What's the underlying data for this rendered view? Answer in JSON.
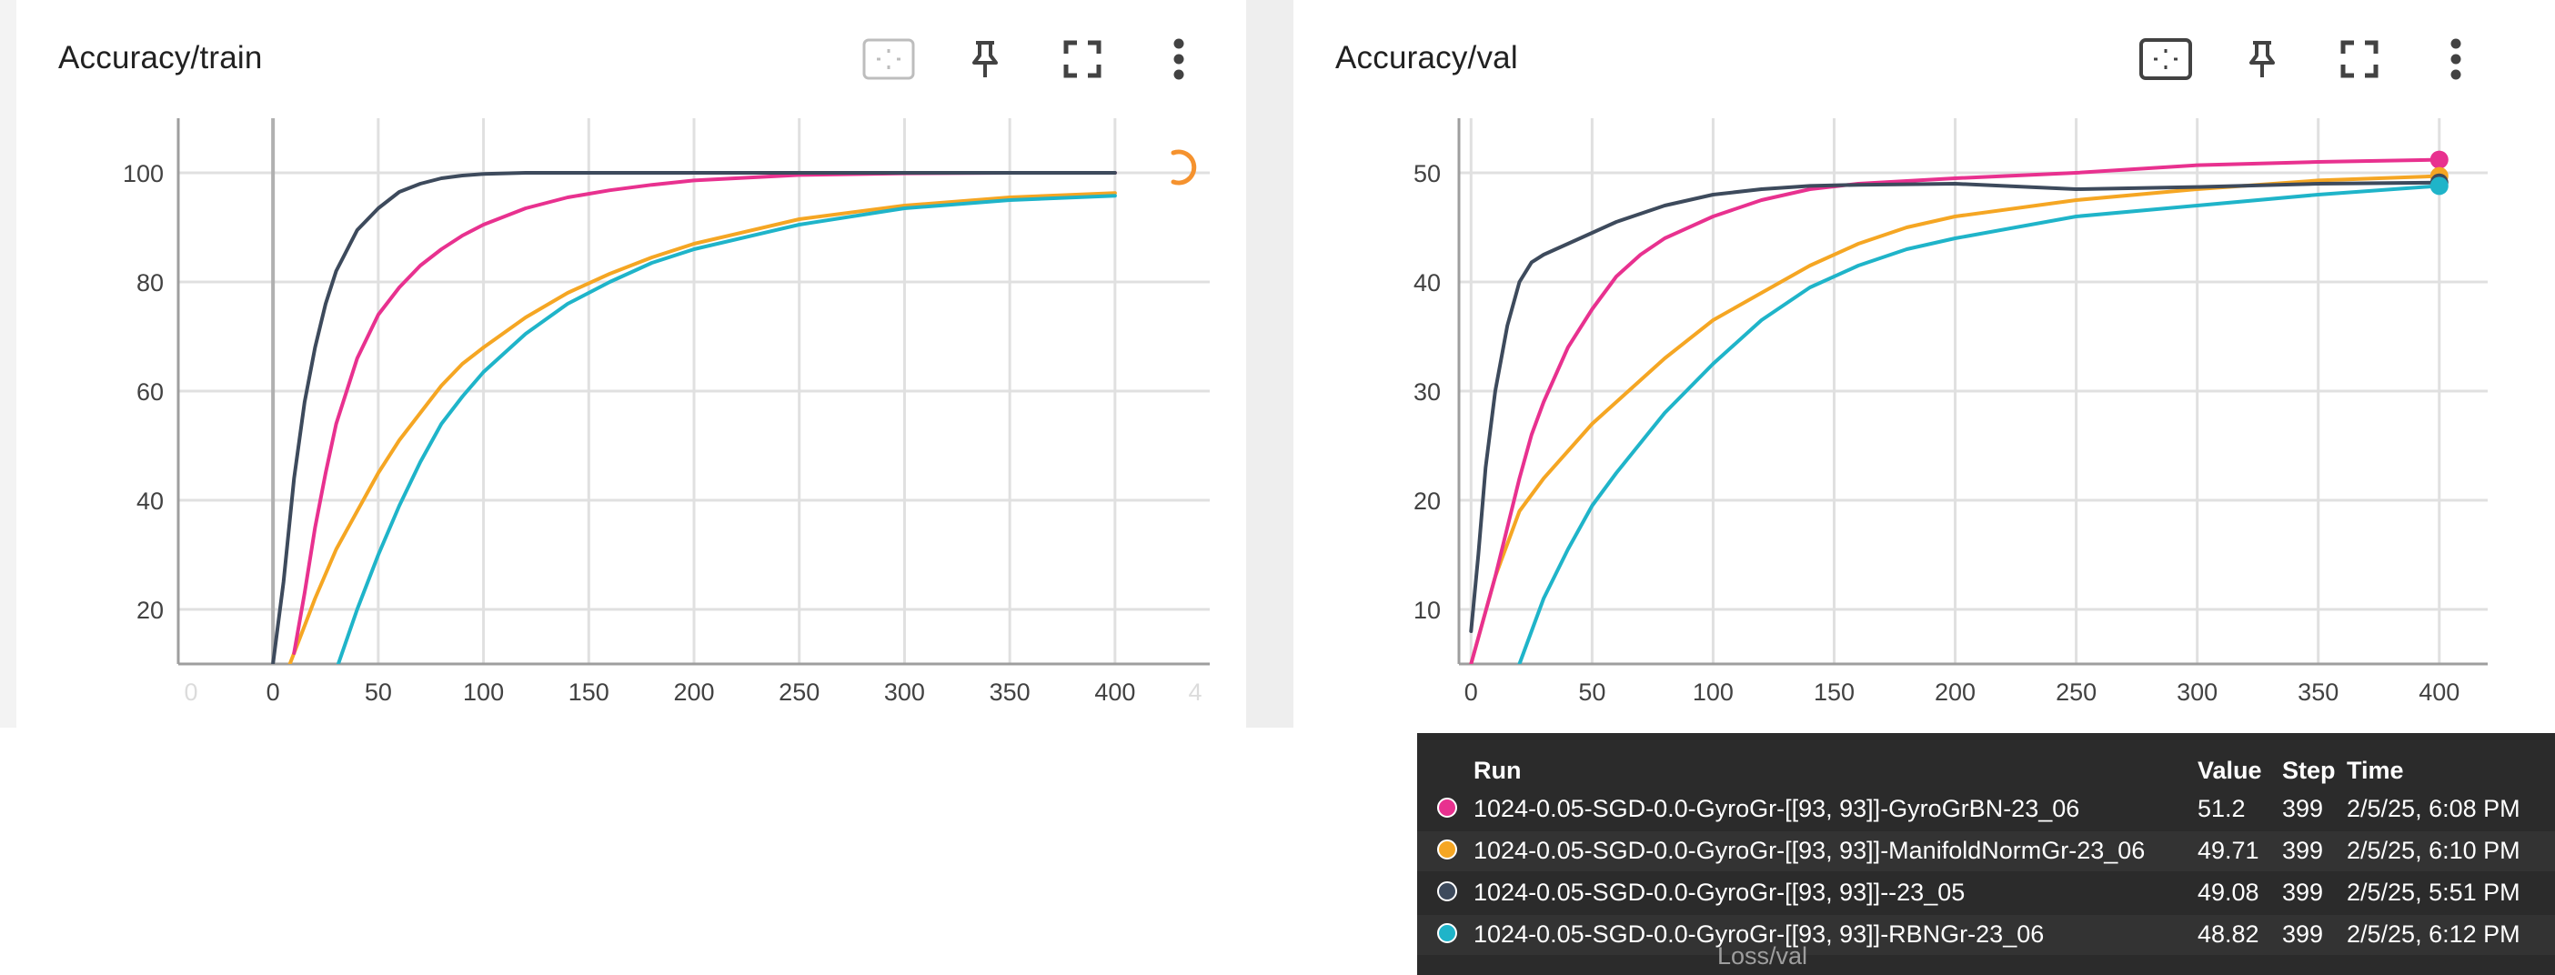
{
  "charts": [
    {
      "card_title": "Accuracy/train",
      "toolbar_icons": [
        "fit-domain-icon",
        "pin-icon",
        "fullscreen-icon",
        "more-vert-icon"
      ],
      "loading_indicator": true
    },
    {
      "card_title": "Accuracy/val",
      "toolbar_icons": [
        "fit-domain-icon",
        "pin-icon",
        "fullscreen-icon",
        "more-vert-icon"
      ],
      "loading_indicator": false
    }
  ],
  "colors": {
    "gyrogrbn": "#e8318f",
    "manifoldnorm": "#f5a623",
    "baseline": "#3d4a5c",
    "rbngr": "#1fb4c9",
    "grid": "#e0e0e0",
    "axis": "#9e9e9e",
    "spinner": "#f5922e"
  },
  "chart_data": [
    {
      "type": "line",
      "title": "Accuracy/train",
      "xlabel": "",
      "ylabel": "",
      "xlim": [
        -45,
        445
      ],
      "ylim": [
        10,
        110
      ],
      "x_ticks": [
        "0",
        "50",
        "100",
        "150",
        "200",
        "250",
        "300",
        "350",
        "400"
      ],
      "x_tick_values": [
        0,
        50,
        100,
        150,
        200,
        250,
        300,
        350,
        400
      ],
      "x_edge_labels": [
        "0",
        "4"
      ],
      "y_ticks": [
        20,
        40,
        60,
        80,
        100
      ],
      "grid": true,
      "series": [
        {
          "name": "1024-0.05-SGD-0.0-GyroGr-[[93, 93]]-GyroGrBN-23_06",
          "color_key": "gyrogrbn",
          "x": [
            10,
            15,
            20,
            25,
            30,
            40,
            50,
            60,
            70,
            80,
            90,
            100,
            120,
            140,
            160,
            180,
            200,
            250,
            300,
            350,
            400
          ],
          "y": [
            12,
            23,
            35,
            45,
            54,
            66,
            74,
            79,
            83,
            86,
            88.5,
            90.5,
            93.5,
            95.5,
            96.8,
            97.8,
            98.6,
            99.6,
            99.9,
            100,
            100
          ]
        },
        {
          "name": "1024-0.05-SGD-0.0-GyroGr-[[93, 93]]-ManifoldNormGr-23_06",
          "color_key": "manifoldnorm",
          "x": [
            8,
            15,
            20,
            30,
            40,
            50,
            60,
            70,
            80,
            90,
            100,
            120,
            140,
            160,
            180,
            200,
            250,
            300,
            350,
            400
          ],
          "y": [
            10,
            17,
            22,
            31,
            38,
            45,
            51,
            56,
            61,
            65,
            68,
            73.5,
            78,
            81.5,
            84.5,
            87,
            91.5,
            94,
            95.5,
            96.3
          ]
        },
        {
          "name": "1024-0.05-SGD-0.0-GyroGr-[[93, 93]]--23_05",
          "color_key": "baseline",
          "x": [
            0,
            5,
            10,
            15,
            20,
            25,
            30,
            40,
            50,
            60,
            70,
            80,
            90,
            100,
            120,
            150,
            200,
            300,
            400
          ],
          "y": [
            10,
            25,
            44,
            58,
            68,
            76,
            82,
            89.5,
            93.5,
            96.5,
            98,
            99,
            99.5,
            99.8,
            100,
            100,
            100,
            100,
            100
          ]
        },
        {
          "name": "1024-0.05-SGD-0.0-GyroGr-[[93, 93]]-RBNGr-23_06",
          "color_key": "rbngr",
          "x": [
            31,
            40,
            50,
            60,
            70,
            80,
            90,
            100,
            120,
            140,
            160,
            180,
            200,
            250,
            300,
            350,
            400
          ],
          "y": [
            10,
            20,
            30,
            39,
            47,
            54,
            59,
            63.5,
            70.5,
            76,
            80,
            83.5,
            86,
            90.5,
            93.5,
            95,
            95.8
          ]
        }
      ]
    },
    {
      "type": "line",
      "title": "Accuracy/val",
      "xlabel": "",
      "ylabel": "",
      "xlim": [
        -5,
        420
      ],
      "ylim": [
        5,
        55
      ],
      "x_ticks": [
        "0",
        "50",
        "100",
        "150",
        "200",
        "250",
        "300",
        "350",
        "400"
      ],
      "x_tick_values": [
        0,
        50,
        100,
        150,
        200,
        250,
        300,
        350,
        400
      ],
      "y_ticks": [
        10,
        20,
        30,
        40,
        50
      ],
      "grid": true,
      "series": [
        {
          "name": "1024-0.05-SGD-0.0-GyroGr-[[93, 93]]-GyroGrBN-23_06",
          "color_key": "gyrogrbn",
          "x": [
            0,
            5,
            10,
            15,
            20,
            25,
            30,
            40,
            50,
            60,
            70,
            80,
            100,
            120,
            140,
            160,
            200,
            250,
            300,
            350,
            400
          ],
          "y": [
            5,
            9,
            13,
            17.5,
            22,
            26,
            29,
            34,
            37.5,
            40.5,
            42.5,
            44,
            46,
            47.5,
            48.5,
            49,
            49.5,
            50,
            50.7,
            51,
            51.2
          ]
        },
        {
          "name": "1024-0.05-SGD-0.0-GyroGr-[[93, 93]]-ManifoldNormGr-23_06",
          "color_key": "manifoldnorm",
          "x": [
            0,
            5,
            10,
            15,
            20,
            30,
            40,
            50,
            60,
            80,
            100,
            120,
            140,
            160,
            180,
            200,
            250,
            300,
            350,
            400
          ],
          "y": [
            5,
            9,
            13,
            16,
            19,
            22,
            24.5,
            27,
            29,
            33,
            36.5,
            39,
            41.5,
            43.5,
            45,
            46,
            47.5,
            48.5,
            49.3,
            49.7
          ]
        },
        {
          "name": "1024-0.05-SGD-0.0-GyroGr-[[93, 93]]--23_05",
          "color_key": "baseline",
          "x": [
            0,
            3,
            6,
            10,
            15,
            20,
            25,
            30,
            40,
            50,
            60,
            80,
            100,
            120,
            140,
            160,
            200,
            250,
            300,
            350,
            400
          ],
          "y": [
            8,
            15,
            23,
            30,
            36,
            40,
            41.8,
            42.5,
            43.5,
            44.5,
            45.5,
            47,
            48,
            48.5,
            48.8,
            48.9,
            49,
            48.5,
            48.7,
            49,
            49.1
          ]
        },
        {
          "name": "1024-0.05-SGD-0.0-GyroGr-[[93, 93]]-RBNGr-23_06",
          "color_key": "rbngr",
          "x": [
            20,
            25,
            30,
            40,
            50,
            60,
            80,
            100,
            120,
            140,
            160,
            180,
            200,
            250,
            300,
            350,
            400
          ],
          "y": [
            5,
            8,
            11,
            15.5,
            19.5,
            22.5,
            28,
            32.5,
            36.5,
            39.5,
            41.5,
            43,
            44,
            46,
            47,
            48,
            48.8
          ]
        }
      ]
    }
  ],
  "tooltip": {
    "headers": {
      "run": "Run",
      "value": "Value",
      "step": "Step",
      "time": "Time"
    },
    "rows": [
      {
        "color_key": "gyrogrbn",
        "run": "1024-0.05-SGD-0.0-GyroGr-[[93, 93]]-GyroGrBN-23_06",
        "value": "51.2",
        "step": "399",
        "time": "2/5/25, 6:08 PM"
      },
      {
        "color_key": "manifoldnorm",
        "run": "1024-0.05-SGD-0.0-GyroGr-[[93, 93]]-ManifoldNormGr-23_06",
        "value": "49.71",
        "step": "399",
        "time": "2/5/25, 6:10 PM"
      },
      {
        "color_key": "baseline",
        "run": "1024-0.05-SGD-0.0-GyroGr-[[93, 93]]--23_05",
        "value": "49.08",
        "step": "399",
        "time": "2/5/25, 5:51 PM"
      },
      {
        "color_key": "rbngr",
        "run": "1024-0.05-SGD-0.0-GyroGr-[[93, 93]]-RBNGr-23_06",
        "value": "48.82",
        "step": "399",
        "time": "2/5/25, 6:12 PM"
      }
    ],
    "underlying_card_title": "Loss/val"
  }
}
